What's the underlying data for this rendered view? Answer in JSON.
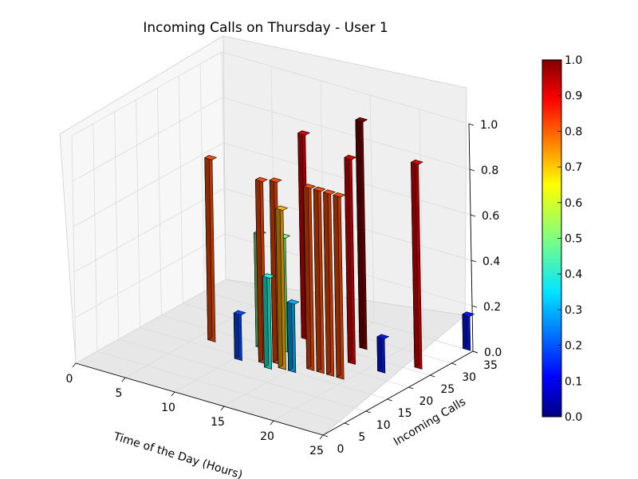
{
  "chart_data": {
    "type": "bar3d",
    "title": "Incoming Calls on Thursday - User 1",
    "xlabel": "Time of the Day (Hours)",
    "ylabel": "Incoming Calls",
    "xlim": [
      0,
      25
    ],
    "ylim": [
      0,
      35
    ],
    "zlim": [
      0,
      1.0
    ],
    "x_ticks": [
      "0",
      "5",
      "10",
      "15",
      "20",
      "25"
    ],
    "y_ticks": [
      "0",
      "5",
      "10",
      "15",
      "20",
      "25",
      "30",
      "35"
    ],
    "z_ticks": [
      "0.0",
      "0.2",
      "0.4",
      "0.6",
      "0.8",
      "1.0"
    ],
    "colorbar": {
      "colormap": "jet",
      "range": [
        0.0,
        1.0
      ],
      "ticks": [
        "0.0",
        "0.1",
        "0.2",
        "0.3",
        "0.4",
        "0.5",
        "0.6",
        "0.7",
        "0.8",
        "0.9",
        "1.0"
      ]
    },
    "grid": true,
    "bars": [
      {
        "hour": 6,
        "calls": 17,
        "value": 0.8
      },
      {
        "hour": 10,
        "calls": 14,
        "value": 0.2
      },
      {
        "hour": 10,
        "calls": 19,
        "value": 0.5
      },
      {
        "hour": 12,
        "calls": 15,
        "value": 0.8
      },
      {
        "hour": 12,
        "calls": 20,
        "value": 0.5
      },
      {
        "hour": 12,
        "calls": 25,
        "value": 0.9
      },
      {
        "hour": 13,
        "calls": 14,
        "value": 0.4
      },
      {
        "hour": 13,
        "calls": 16,
        "value": 0.8
      },
      {
        "hour": 14,
        "calls": 15,
        "value": 0.7
      },
      {
        "hour": 15,
        "calls": 15,
        "value": 0.3
      },
      {
        "hour": 16,
        "calls": 17,
        "value": 0.8
      },
      {
        "hour": 17,
        "calls": 17,
        "value": 0.8
      },
      {
        "hour": 17,
        "calls": 27,
        "value": 1.0
      },
      {
        "hour": 18,
        "calls": 17,
        "value": 0.8
      },
      {
        "hour": 18,
        "calls": 22,
        "value": 0.9
      },
      {
        "hour": 19,
        "calls": 17,
        "value": 0.8
      },
      {
        "hour": 21,
        "calls": 22,
        "value": 0.15
      },
      {
        "hour": 23,
        "calls": 26,
        "value": 0.9
      },
      {
        "hour": 24,
        "calls": 35,
        "value": 0.15
      }
    ]
  }
}
